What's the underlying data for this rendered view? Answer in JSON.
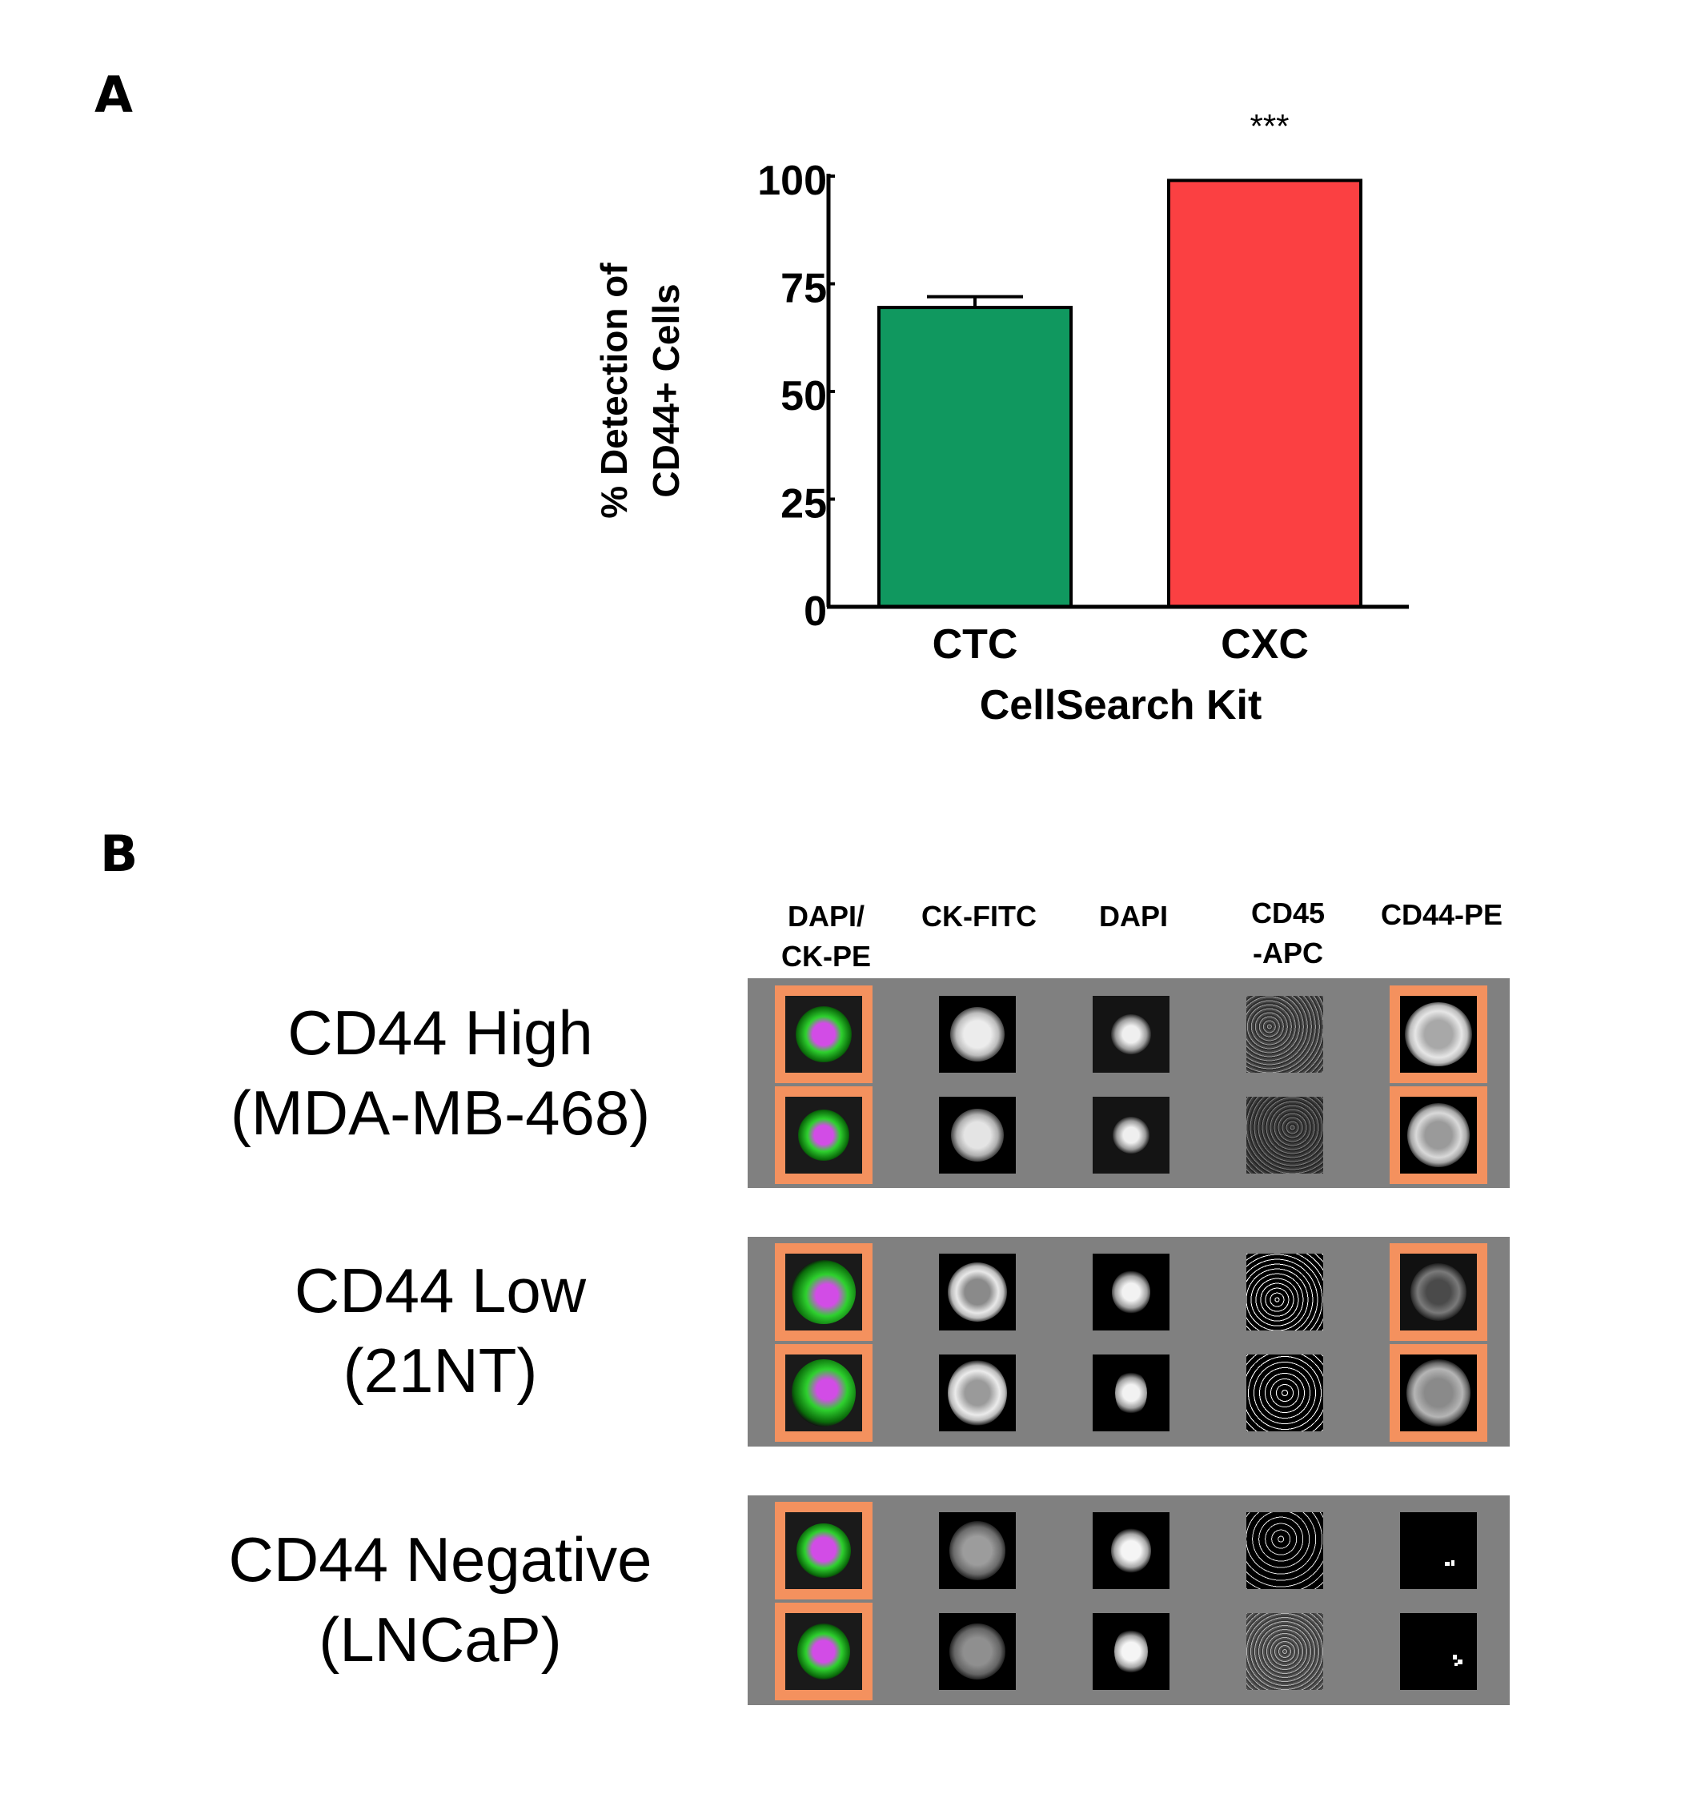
{
  "panel_a_label": "A",
  "panel_b_label": "B",
  "chart_data": {
    "type": "bar",
    "title": "",
    "categories": [
      "CTC",
      "CXC"
    ],
    "values": [
      69.5,
      99
    ],
    "errors": [
      2.5,
      0
    ],
    "significance": [
      "",
      "***"
    ],
    "xlabel": "CellSearch Kit",
    "ylabel_line1": "% Detection of",
    "ylabel_line2": "CD44+ Cells",
    "ylim": [
      0,
      100
    ],
    "yticks": [
      "0",
      "25",
      "50",
      "75",
      "100"
    ],
    "colors": [
      "#10985f",
      "#fb4042"
    ],
    "grid": false
  },
  "panel_b": {
    "column_headers": [
      {
        "line1": "DAPI/",
        "line2": "CK-PE"
      },
      {
        "line1": "",
        "line2": "CK-FITC"
      },
      {
        "line1": "",
        "line2": "DAPI"
      },
      {
        "line1": "CD45",
        "line2": "-APC"
      },
      {
        "line1": "",
        "line2": "CD44-PE"
      }
    ],
    "groups": [
      {
        "line1": "CD44 High",
        "line2": "(MDA-MB-468)"
      },
      {
        "line1": "CD44 Low",
        "line2": "(21NT)"
      },
      {
        "line1": "CD44 Negative",
        "line2": "(LNCaP)"
      }
    ],
    "frame_color": "#f4915e"
  }
}
